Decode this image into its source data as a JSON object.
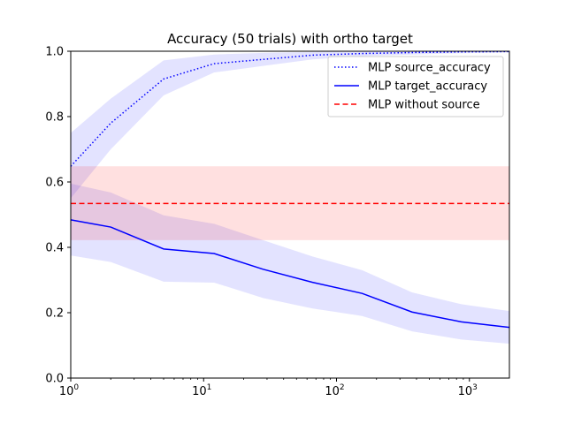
{
  "chart_data": {
    "type": "line",
    "title": "Accuracy (50 trials) with ortho target",
    "xlabel": "",
    "ylabel": "",
    "xscale": "log",
    "xlim": [
      1,
      2000
    ],
    "ylim": [
      0.0,
      1.0
    ],
    "grid": false,
    "legend_position": "top-right",
    "yticks": [
      {
        "value": 0.0,
        "label": "0.0"
      },
      {
        "value": 0.2,
        "label": "0.2"
      },
      {
        "value": 0.4,
        "label": "0.4"
      },
      {
        "value": 0.6,
        "label": "0.6"
      },
      {
        "value": 0.8,
        "label": "0.8"
      },
      {
        "value": 1.0,
        "label": "1.0"
      }
    ],
    "xticks": [
      {
        "value": 1,
        "base": "10",
        "exp": "0"
      },
      {
        "value": 10,
        "base": "10",
        "exp": "1"
      },
      {
        "value": 100,
        "base": "10",
        "exp": "2"
      },
      {
        "value": 1000,
        "base": "10",
        "exp": "3"
      }
    ],
    "series": [
      {
        "name": "MLP source_accuracy",
        "color": "#0000ff",
        "linestyle": "dotted",
        "x": [
          1,
          2,
          5,
          12,
          28,
          66,
          156,
          370,
          870,
          2000
        ],
        "y": [
          0.648,
          0.78,
          0.915,
          0.962,
          0.975,
          0.988,
          0.993,
          0.996,
          0.998,
          0.999
        ],
        "band_lower": [
          0.55,
          0.7,
          0.865,
          0.935,
          0.955,
          0.975,
          0.985,
          0.99,
          0.994,
          0.996
        ],
        "band_upper": [
          0.75,
          0.855,
          0.972,
          0.99,
          0.995,
          0.998,
          1.0,
          1.0,
          1.0,
          1.0
        ]
      },
      {
        "name": "MLP target_accuracy",
        "color": "#0000ff",
        "linestyle": "solid",
        "x": [
          1,
          2,
          5,
          12,
          28,
          66,
          156,
          370,
          870,
          2000
        ],
        "y": [
          0.484,
          0.462,
          0.395,
          0.381,
          0.333,
          0.293,
          0.259,
          0.202,
          0.172,
          0.155
        ],
        "band_lower": [
          0.375,
          0.355,
          0.295,
          0.292,
          0.245,
          0.213,
          0.19,
          0.143,
          0.118,
          0.105
        ],
        "band_upper": [
          0.595,
          0.568,
          0.498,
          0.472,
          0.422,
          0.372,
          0.33,
          0.262,
          0.226,
          0.205
        ]
      },
      {
        "name": "MLP without source",
        "color": "#ff0000",
        "linestyle": "dashed",
        "constant_y": 0.534,
        "band_lower": 0.422,
        "band_upper": 0.648
      }
    ]
  }
}
